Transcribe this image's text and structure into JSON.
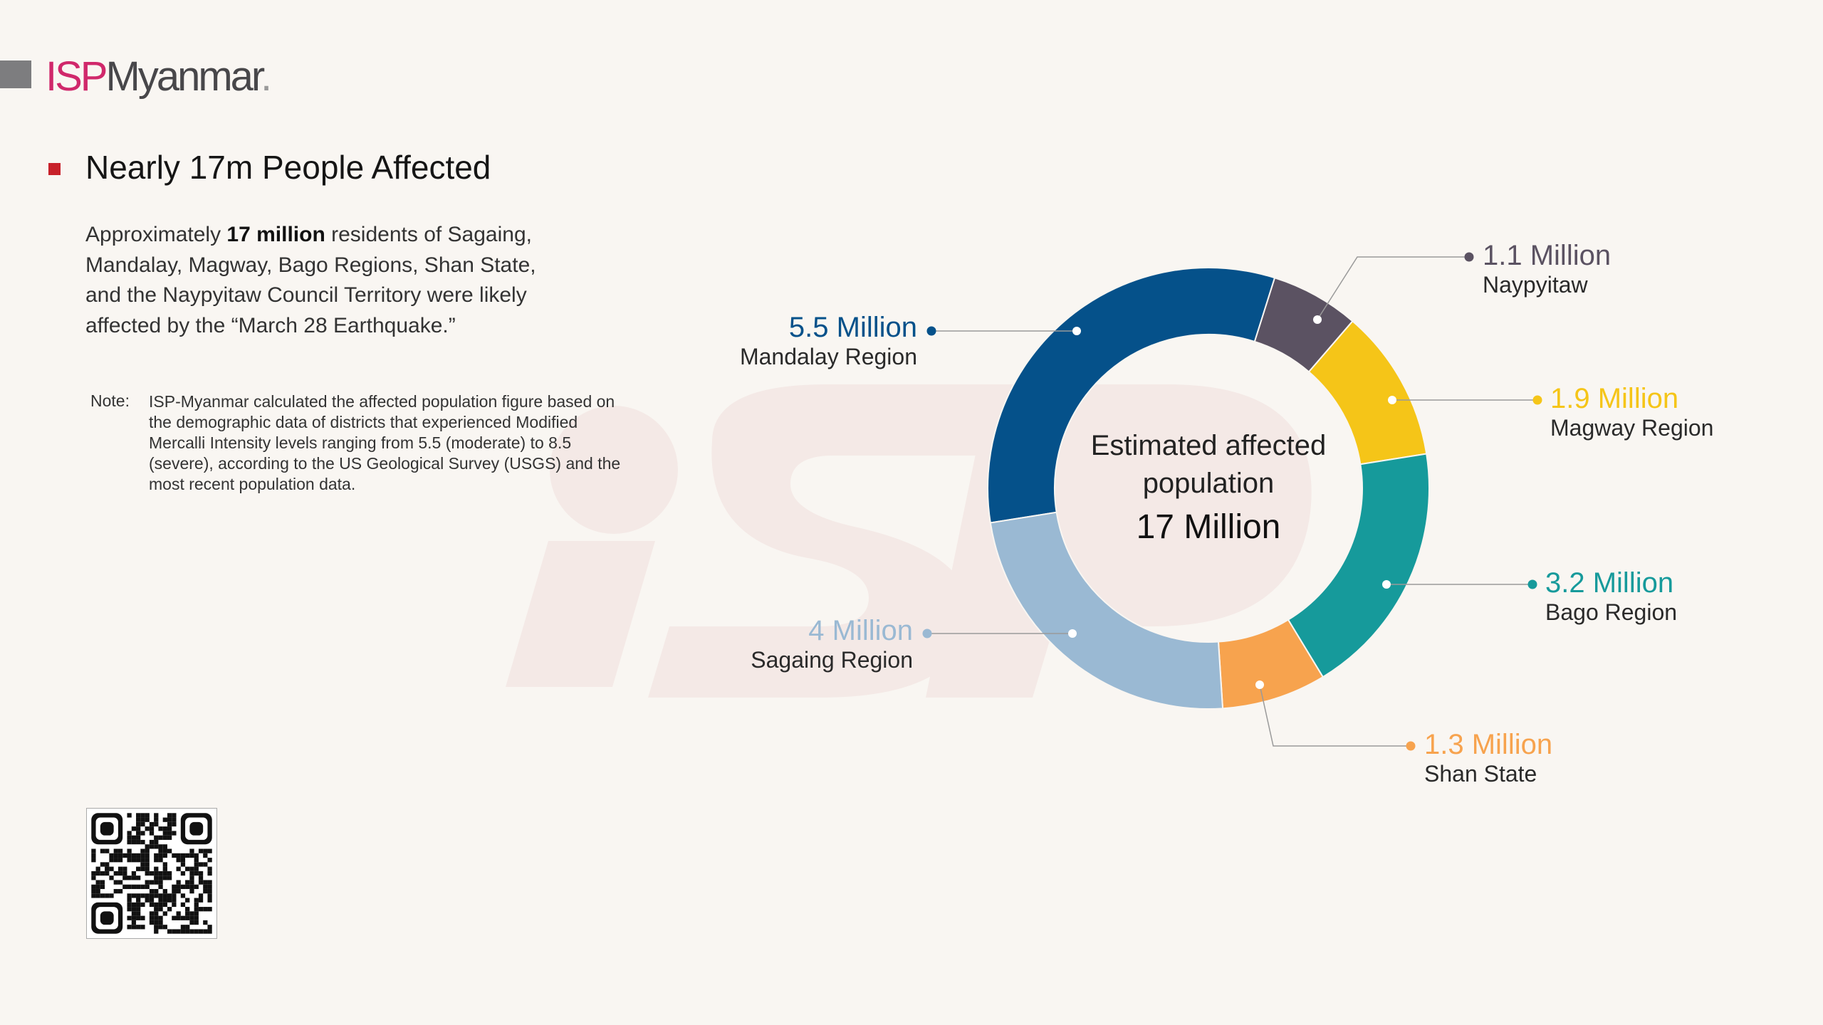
{
  "logo": {
    "part1": "ISP",
    "part2": "Myanmar",
    "dot": "."
  },
  "heading": "Nearly 17m People Affected",
  "paragraph": {
    "pre": "Approximately ",
    "bold": "17 million",
    "post": " residents of Sagaing, Mandalay, Magway, Bago Regions, Shan State, and the Naypyitaw Council Territory were likely affected by the “March 28 Earthquake.”"
  },
  "note": {
    "label": "Note:",
    "text": "ISP-Myanmar calculated the affected population figure based on the demographic data of districts that experienced Modified Mercalli Intensity levels ranging from 5.5 (moderate) to 8.5 (severe), according to the US Geological Survey (USGS) and the most recent population data."
  },
  "chart_data": {
    "type": "pie",
    "variant": "donut",
    "center_label": "Estimated affected population",
    "center_value": "17 Million",
    "unit": "Million",
    "slices": [
      {
        "name": "Mandalay Region",
        "value": 5.5,
        "label": "5.5 Million",
        "color": "#05518a"
      },
      {
        "name": "Naypyitaw",
        "value": 1.1,
        "label": "1.1 Million",
        "color": "#5b5262"
      },
      {
        "name": "Magway Region",
        "value": 1.9,
        "label": "1.9 Million",
        "color": "#f5c518"
      },
      {
        "name": "Bago Region",
        "value": 3.2,
        "label": "3.2 Million",
        "color": "#169a9b"
      },
      {
        "name": "Shan State",
        "value": 1.3,
        "label": "1.3 Million",
        "color": "#f7a34e"
      },
      {
        "name": "Sagaing Region",
        "value": 4,
        "label": "4 Million",
        "color": "#9ab9d3"
      }
    ]
  }
}
